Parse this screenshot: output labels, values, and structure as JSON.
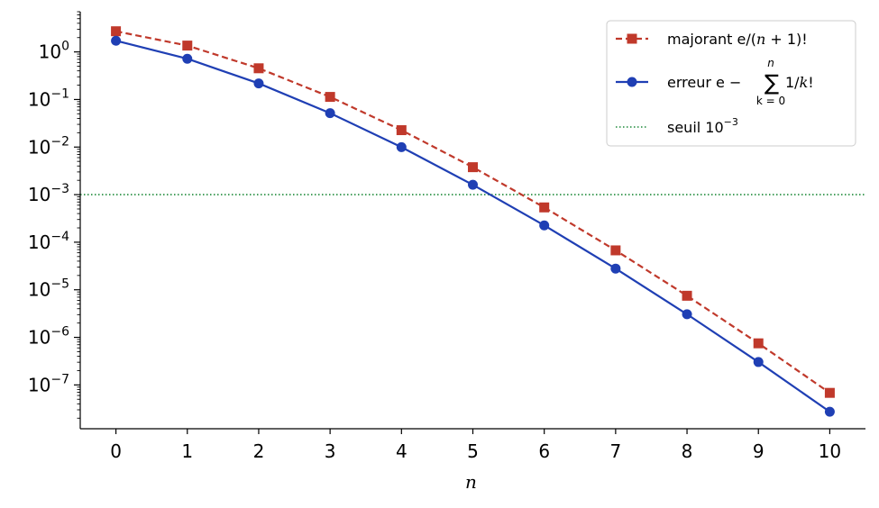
{
  "chart_data": {
    "type": "line",
    "xlabel": "n",
    "ylabel": "",
    "yscale": "log",
    "xlim": [
      -0.5,
      10.5
    ],
    "ylim": [
      1.2e-08,
      7
    ],
    "grid": false,
    "legend_position": "top-right",
    "x_ticks": [
      0,
      1,
      2,
      3,
      4,
      5,
      6,
      7,
      8,
      9,
      10
    ],
    "y_tick_exponents": [
      0,
      -1,
      -2,
      -3,
      -4,
      -5,
      -6,
      -7
    ],
    "x": [
      0,
      1,
      2,
      3,
      4,
      5,
      6,
      7,
      8,
      9,
      10
    ],
    "series": [
      {
        "name": "majorant e/(n + 1)!",
        "legend": {
          "main": "majorant e/(",
          "var": "n",
          "rest": " + 1)!"
        },
        "color": "#c0392b",
        "linestyle": "dashed",
        "marker": "square",
        "values": [
          2.718,
          1.359,
          0.453,
          0.1133,
          0.02265,
          0.003775,
          0.000539,
          6.74e-05,
          7.49e-06,
          7.49e-07,
          6.81e-08
        ]
      },
      {
        "name": "erreur e − Σ_{k=0}^{n} 1/k!",
        "legend": {
          "main": "erreur e −",
          "sigma": "∑",
          "upper": "n",
          "lower": "k = 0",
          "rest": "1/",
          "var": "k",
          "tail": "!"
        },
        "color": "#1f3fb4",
        "linestyle": "solid",
        "marker": "circle",
        "values": [
          1.718,
          0.718,
          0.218,
          0.0516,
          0.00995,
          0.00161,
          0.000226,
          2.79e-05,
          3.06e-06,
          3.03e-07,
          2.73e-08
        ]
      }
    ],
    "threshold": {
      "name": "seuil 10^-3",
      "legend": {
        "main": "seuil 10",
        "exp": "−3"
      },
      "value": 0.001,
      "color": "#1e8a3a",
      "linestyle": "dotted"
    }
  }
}
